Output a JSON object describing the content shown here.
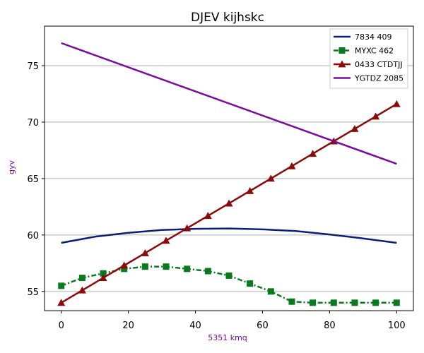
{
  "chart_data": {
    "type": "line",
    "title": "DJEV kijhskc",
    "xlabel": "5351 kmq",
    "ylabel": "gyv",
    "xlim": [
      -5,
      105
    ],
    "ylim": [
      53.3,
      78.5
    ],
    "xticks": [
      0,
      20,
      40,
      60,
      80,
      100
    ],
    "yticks": [
      55,
      60,
      65,
      70,
      75
    ],
    "grid": "horizontal",
    "legend_position": "top-right",
    "series": [
      {
        "name": "7834 409",
        "color": "#0b1f7a",
        "marker": "none",
        "dash": "solid",
        "x": [
          0,
          10,
          20,
          30,
          40,
          50,
          60,
          70,
          80,
          90,
          100
        ],
        "y": [
          59.3,
          59.85,
          60.2,
          60.45,
          60.55,
          60.58,
          60.5,
          60.35,
          60.05,
          59.7,
          59.3
        ]
      },
      {
        "name": "MYXC 462",
        "color": "#0a7a1e",
        "marker": "square",
        "dash": "dashdot",
        "x": [
          0,
          6.25,
          12.5,
          18.75,
          25,
          31.25,
          37.5,
          43.75,
          50,
          56.25,
          62.5,
          68.75,
          75,
          81.25,
          87.5,
          93.75,
          100
        ],
        "y": [
          55.5,
          56.2,
          56.6,
          57.0,
          57.2,
          57.2,
          57.0,
          56.8,
          56.4,
          55.7,
          55.0,
          54.1,
          54.0,
          54.0,
          54.0,
          54.0,
          54.0
        ]
      },
      {
        "name": "0433 CTDTJJ",
        "color": "#8b0a0a",
        "marker": "triangle",
        "dash": "solid",
        "x": [
          0,
          6.25,
          12.5,
          18.75,
          25,
          31.25,
          37.5,
          43.75,
          50,
          56.25,
          62.5,
          68.75,
          75,
          81.25,
          87.5,
          93.75,
          100
        ],
        "y": [
          54.0,
          55.1,
          56.2,
          57.3,
          58.4,
          59.5,
          60.6,
          61.7,
          62.8,
          63.9,
          65.0,
          66.1,
          67.2,
          68.3,
          69.4,
          70.5,
          71.6
        ]
      },
      {
        "name": "YGTDZ 2085",
        "color": "#7a0aa0",
        "marker": "none",
        "dash": "solid",
        "x": [
          0,
          100
        ],
        "y": [
          77.0,
          66.3
        ]
      }
    ]
  }
}
